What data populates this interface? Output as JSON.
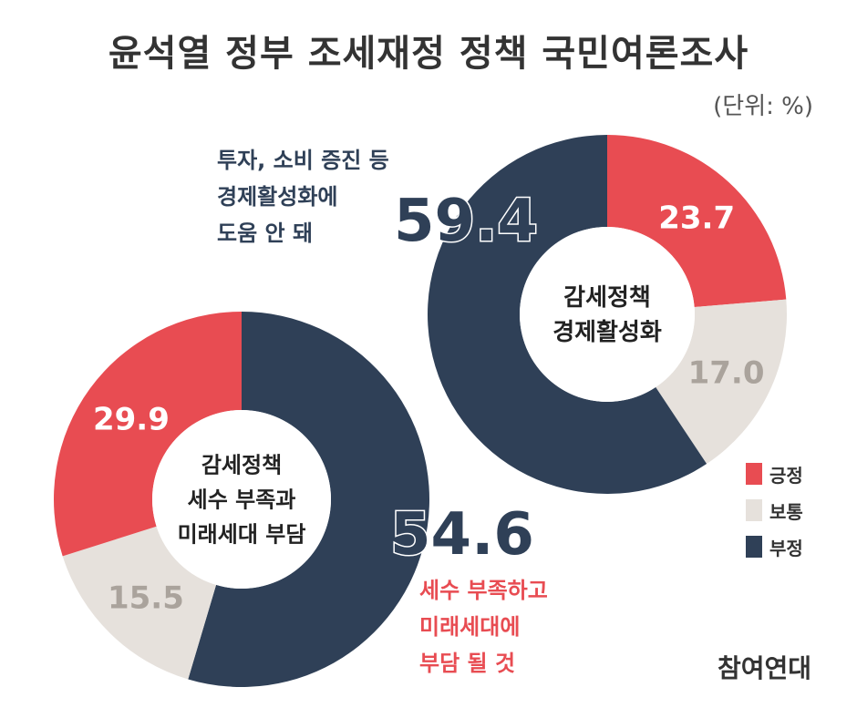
{
  "chart_title": "윤석열 정부 조세재정 정책 국민여론조사",
  "unit_label": "(단위: %)",
  "colors": {
    "긍정": "#e84c52",
    "보통": "#e6e1dc",
    "부정": "#2f4057"
  },
  "legend": [
    "긍정",
    "보통",
    "부정"
  ],
  "notes": {
    "top": "투자, 소비 증진 등\n경제활성화에\n도움 안 돼",
    "bottom": "세수 부족하고\n미래세대에\n부담 될 것"
  },
  "logo": "참여연대",
  "chart_data": [
    {
      "type": "pie",
      "center_label": [
        "감세정책",
        "경제활성화"
      ],
      "categories": [
        "긍정",
        "보통",
        "부정"
      ],
      "values": [
        23.7,
        17.0,
        59.4
      ],
      "value_labels": [
        "23.7",
        "17.0",
        "59.4"
      ]
    },
    {
      "type": "pie",
      "center_label": [
        "감세정책",
        "세수 부족과",
        "미래세대 부담"
      ],
      "categories": [
        "부정",
        "보통",
        "긍정"
      ],
      "values": [
        54.6,
        15.5,
        29.9
      ],
      "value_labels": [
        "54.6",
        "15.5",
        "29.9"
      ]
    }
  ]
}
